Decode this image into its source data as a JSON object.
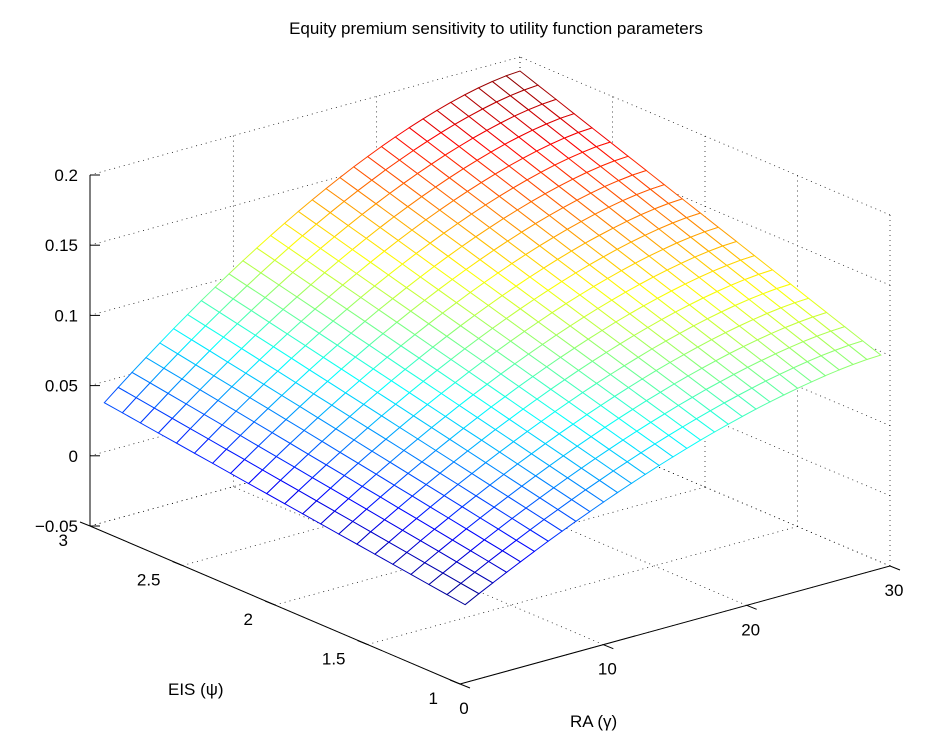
{
  "chart_data": {
    "type": "surface",
    "title": "Equity premium sensitivity to utility function parameters",
    "xlabel": "RA (γ)",
    "ylabel": "EIS (ψ)",
    "zlabel": "",
    "xlim": [
      0,
      30
    ],
    "ylim": [
      1,
      3
    ],
    "zlim": [
      -0.05,
      0.2
    ],
    "xticks": [
      "0",
      "10",
      "20",
      "30"
    ],
    "yticks": [
      "1",
      "1.5",
      "2",
      "2.5",
      "3"
    ],
    "zticks": [
      "−0.05",
      "0",
      "0.05",
      "0.1",
      "0.15",
      "0.2"
    ],
    "grid": true,
    "colormap": "jet",
    "surface": {
      "ra_range": [
        1,
        30
      ],
      "eis_range": [
        1.05,
        3
      ],
      "corners": {
        "ra_1_eis_3": 0.035,
        "ra_30_eis_3": 0.19,
        "ra_1_eis_1": 0.0,
        "ra_30_eis_1": 0.095
      },
      "ra_curvature": "concave"
    }
  }
}
